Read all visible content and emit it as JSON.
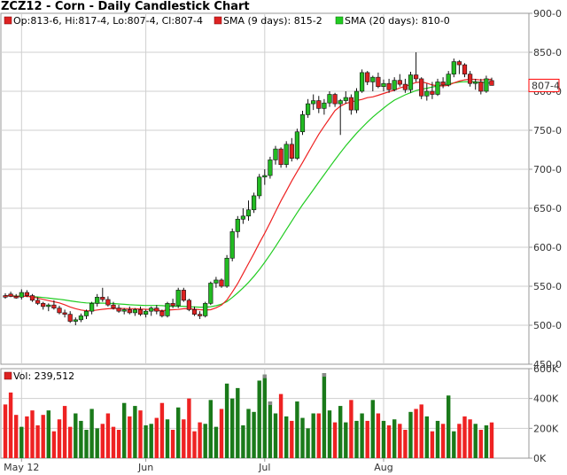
{
  "chart_title": "ZCZ12 - Corn - Daily Candlestick Chart",
  "legend": {
    "ohlc": "Op:813-6, Hi:817-4, Lo:807-4, Cl:807-4",
    "sma9": "SMA (9 days): 815-2",
    "sma20": "SMA (20 days): 810-0",
    "volume": "Vol: 239,512"
  },
  "colors": {
    "up": "#22bb22",
    "down": "#dd2222",
    "sma9": "#ee2222",
    "sma20": "#22cc22",
    "vol_up": "#1a7a1a",
    "vol_down": "#ee2222",
    "grid": "#cfcfcf",
    "last_price_box": "#ff0000"
  },
  "chart_data": [
    {
      "type": "candlestick",
      "title": "ZCZ12 - Corn - Daily Candlestick Chart",
      "ylim": [
        450,
        900
      ],
      "y_ticks": [
        "450-0",
        "500-0",
        "550-0",
        "600-0",
        "650-0",
        "700-0",
        "750-0",
        "800-0",
        "850-0",
        "900-0"
      ],
      "x_ticks": [
        "May 12",
        "Jun",
        "Jul",
        "Aug"
      ],
      "last_price_label": "807-4",
      "grid": true,
      "candles": [
        [
          538,
          541,
          534,
          536
        ],
        [
          540,
          543,
          536,
          537
        ],
        [
          537,
          540,
          534,
          535
        ],
        [
          536,
          546,
          533,
          542
        ],
        [
          542,
          545,
          536,
          538
        ],
        [
          538,
          540,
          530,
          532
        ],
        [
          532,
          536,
          526,
          528
        ],
        [
          528,
          530,
          520,
          524
        ],
        [
          524,
          528,
          518,
          526
        ],
        [
          526,
          532,
          520,
          522
        ],
        [
          522,
          525,
          514,
          516
        ],
        [
          516,
          520,
          510,
          514
        ],
        [
          514,
          518,
          503,
          505
        ],
        [
          505,
          510,
          500,
          507
        ],
        [
          507,
          515,
          504,
          512
        ],
        [
          512,
          520,
          508,
          518
        ],
        [
          518,
          530,
          514,
          528
        ],
        [
          528,
          540,
          524,
          536
        ],
        [
          536,
          548,
          530,
          533
        ],
        [
          533,
          537,
          524,
          526
        ],
        [
          526,
          530,
          520,
          522
        ],
        [
          522,
          526,
          516,
          518
        ],
        [
          518,
          522,
          514,
          520
        ],
        [
          520,
          524,
          514,
          516
        ],
        [
          516,
          522,
          512,
          520
        ],
        [
          520,
          524,
          512,
          514
        ],
        [
          514,
          520,
          510,
          518
        ],
        [
          518,
          524,
          512,
          522
        ],
        [
          522,
          526,
          514,
          518
        ],
        [
          518,
          520,
          510,
          512
        ],
        [
          512,
          530,
          510,
          528
        ],
        [
          528,
          534,
          522,
          525
        ],
        [
          525,
          548,
          522,
          545
        ],
        [
          545,
          548,
          530,
          532
        ],
        [
          532,
          534,
          518,
          520
        ],
        [
          520,
          524,
          512,
          514
        ],
        [
          514,
          518,
          508,
          512
        ],
        [
          512,
          530,
          510,
          528
        ],
        [
          528,
          556,
          526,
          554
        ],
        [
          554,
          562,
          548,
          558
        ],
        [
          558,
          560,
          548,
          550
        ],
        [
          550,
          590,
          548,
          586
        ],
        [
          586,
          624,
          582,
          620
        ],
        [
          620,
          640,
          612,
          636
        ],
        [
          636,
          650,
          630,
          640
        ],
        [
          640,
          660,
          634,
          648
        ],
        [
          648,
          670,
          644,
          666
        ],
        [
          666,
          694,
          662,
          690
        ],
        [
          690,
          700,
          680,
          692
        ],
        [
          692,
          716,
          688,
          712
        ],
        [
          712,
          730,
          706,
          726
        ],
        [
          726,
          728,
          702,
          706
        ],
        [
          706,
          736,
          702,
          732
        ],
        [
          732,
          740,
          710,
          714
        ],
        [
          714,
          752,
          712,
          748
        ],
        [
          748,
          775,
          744,
          770
        ],
        [
          770,
          790,
          766,
          784
        ],
        [
          784,
          796,
          776,
          788
        ],
        [
          788,
          794,
          772,
          778
        ],
        [
          778,
          790,
          770,
          785
        ],
        [
          785,
          800,
          780,
          796
        ],
        [
          796,
          798,
          780,
          784
        ],
        [
          784,
          790,
          744,
          788
        ],
        [
          788,
          800,
          784,
          792
        ],
        [
          792,
          796,
          770,
          776
        ],
        [
          776,
          804,
          772,
          800
        ],
        [
          800,
          828,
          798,
          824
        ],
        [
          824,
          826,
          808,
          812
        ],
        [
          812,
          820,
          800,
          818
        ],
        [
          818,
          824,
          804,
          806
        ],
        [
          806,
          815,
          800,
          810
        ],
        [
          810,
          816,
          798,
          802
        ],
        [
          802,
          818,
          800,
          814
        ],
        [
          814,
          822,
          806,
          809
        ],
        [
          809,
          816,
          798,
          802
        ],
        [
          802,
          825,
          798,
          821
        ],
        [
          821,
          850,
          812,
          816
        ],
        [
          816,
          818,
          790,
          794
        ],
        [
          794,
          810,
          788,
          800
        ],
        [
          800,
          812,
          790,
          796
        ],
        [
          796,
          816,
          794,
          812
        ],
        [
          812,
          818,
          804,
          808
        ],
        [
          808,
          826,
          806,
          822
        ],
        [
          822,
          842,
          818,
          838
        ],
        [
          838,
          840,
          822,
          834
        ],
        [
          834,
          836,
          818,
          822
        ],
        [
          822,
          826,
          806,
          810
        ],
        [
          810,
          816,
          802,
          812
        ],
        [
          812,
          816,
          796,
          800
        ],
        [
          800,
          820,
          798,
          816
        ],
        [
          813.75,
          817.5,
          807.5,
          807.5
        ]
      ],
      "sma9": [
        538,
        537.5,
        537,
        537.2,
        537,
        536.2,
        534.8,
        533.2,
        531.6,
        530.1,
        528.6,
        526.3,
        523.4,
        521.3,
        519.6,
        518.5,
        518.5,
        519.5,
        520.5,
        521.1,
        521.4,
        521.6,
        521.4,
        521.2,
        521.3,
        520.8,
        520.4,
        520.3,
        519.3,
        518.6,
        519.4,
        519.9,
        520.2,
        521.1,
        521.1,
        520.6,
        519.9,
        519.6,
        519.9,
        522.4,
        525.8,
        532.4,
        542.5,
        553.4,
        566.3,
        579.1,
        591.8,
        605.3,
        617.9,
        631.5,
        645.6,
        659.4,
        672,
        685,
        696.9,
        708.6,
        720.8,
        732.9,
        744.8,
        755.2,
        765.2,
        775.2,
        780.9,
        784.4,
        786.1,
        788.2,
        789.6,
        791.8,
        792.8,
        794.9,
        797.2,
        799.3,
        801.5,
        804.3,
        806.1,
        808.9,
        811.3,
        812.1,
        810.5,
        808.1,
        807.1,
        806.8,
        807.6,
        810.8,
        813.1,
        814.7,
        815.4,
        815.2,
        814.4,
        815.2,
        815.3
      ],
      "sma20": [
        538,
        537.8,
        537.5,
        537.2,
        537,
        536.8,
        536.2,
        535.6,
        534.8,
        534,
        533.3,
        532.4,
        531.3,
        530.2,
        529.3,
        528.6,
        528.4,
        528.4,
        528.3,
        528.2,
        527.8,
        527.3,
        526.8,
        526.3,
        525.9,
        525.6,
        525.3,
        525.3,
        525.3,
        525.1,
        524.5,
        524.2,
        524.4,
        524.3,
        523.7,
        523.4,
        523.2,
        523.2,
        523.7,
        525,
        527.1,
        530.3,
        535.6,
        541.5,
        548,
        554.9,
        562.7,
        571.3,
        580.7,
        590.6,
        600.9,
        611.7,
        622.6,
        633.4,
        644.2,
        654.5,
        664.1,
        673.7,
        683.5,
        693.1,
        702.6,
        712,
        721.3,
        730.1,
        738.3,
        746.2,
        753.4,
        760.4,
        766.9,
        772.8,
        778.4,
        783.9,
        788.6,
        792.1,
        795.5,
        798.2,
        800.9,
        802.6,
        803.9,
        805.4,
        806.7,
        808.2,
        809.5,
        810.7,
        811.8,
        812.3,
        812.1,
        812,
        811.6,
        811.2,
        810
      ]
    },
    {
      "type": "bar",
      "title": "Vol: 239,512",
      "ylim": [
        0,
        600000
      ],
      "y_ticks": [
        "0K",
        "200K",
        "400K",
        "600K"
      ],
      "values": [
        360000,
        440000,
        290000,
        210000,
        280000,
        320000,
        220000,
        290000,
        320000,
        180000,
        260000,
        350000,
        210000,
        300000,
        250000,
        190000,
        330000,
        200000,
        230000,
        300000,
        210000,
        190000,
        370000,
        280000,
        350000,
        320000,
        220000,
        230000,
        270000,
        370000,
        260000,
        190000,
        340000,
        260000,
        400000,
        180000,
        240000,
        230000,
        390000,
        210000,
        330000,
        500000,
        400000,
        470000,
        220000,
        330000,
        310000,
        520000,
        560000,
        380000,
        300000,
        430000,
        280000,
        250000,
        380000,
        270000,
        200000,
        300000,
        300000,
        570000,
        320000,
        240000,
        350000,
        240000,
        390000,
        250000,
        300000,
        250000,
        390000,
        300000,
        250000,
        220000,
        260000,
        230000,
        190000,
        310000,
        330000,
        360000,
        280000,
        180000,
        250000,
        230000,
        420000,
        180000,
        230000,
        280000,
        260000,
        230000,
        190000,
        220000,
        239512
      ],
      "volume_cap_shade": [
        false,
        false,
        false,
        false,
        false,
        false,
        false,
        false,
        false,
        false,
        false,
        false,
        false,
        false,
        false,
        false,
        false,
        false,
        false,
        false,
        false,
        false,
        false,
        false,
        false,
        false,
        false,
        false,
        false,
        false,
        false,
        false,
        false,
        false,
        false,
        false,
        false,
        false,
        false,
        false,
        false,
        false,
        false,
        false,
        false,
        false,
        false,
        false,
        true,
        true,
        false,
        false,
        false,
        false,
        false,
        false,
        false,
        false,
        false,
        true,
        false,
        false,
        false,
        false,
        false,
        false,
        false,
        false,
        false,
        false,
        false,
        false,
        false,
        false,
        false,
        false,
        false,
        false,
        false,
        false,
        false,
        false,
        false,
        false,
        false,
        false,
        false,
        false,
        false,
        false,
        false
      ]
    }
  ]
}
